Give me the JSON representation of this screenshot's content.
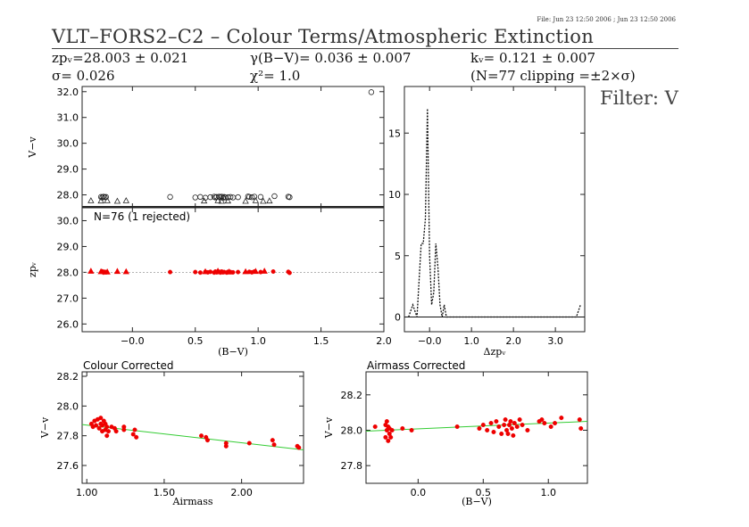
{
  "file_stamp": "File: Jun 23 12:50 2006 ; Jun 23 12:50 2006",
  "header": {
    "title": "VLT–FORS2–C2 – Colour Terms/Atmospheric Extinction",
    "zp_line": "zpᵥ=28.003 ± 0.021",
    "sigma_line": "σ= 0.026",
    "gamma_line": "γ(B−V)= 0.036 ± 0.007",
    "chi2_line": "χ²= 1.0",
    "k_line": "kᵥ= 0.121 ± 0.007",
    "clip_line": "(N=77 clipping =±2×σ)",
    "filter_label": "Filter: V"
  },
  "chart_data": [
    {
      "id": "top",
      "type": "scatter",
      "ylabel": "V−v",
      "xlim": [
        -0.4,
        2.0
      ],
      "ylim": [
        27.5,
        32.2
      ],
      "yticks": [
        28.0,
        29.0,
        30.0,
        31.0,
        32.0
      ],
      "series": [
        {
          "marker": "circle",
          "points": [
            [
              -0.25,
              27.92
            ],
            [
              -0.24,
              27.9
            ],
            [
              -0.23,
              27.93
            ],
            [
              -0.22,
              27.91
            ],
            [
              -0.21,
              27.92
            ],
            [
              0.3,
              27.92
            ],
            [
              0.5,
              27.9
            ],
            [
              0.54,
              27.92
            ],
            [
              0.58,
              27.89
            ],
            [
              0.62,
              27.91
            ],
            [
              0.65,
              27.93
            ],
            [
              0.66,
              27.9
            ],
            [
              0.67,
              27.92
            ],
            [
              0.69,
              27.93
            ],
            [
              0.7,
              27.91
            ],
            [
              0.71,
              27.93
            ],
            [
              0.72,
              27.89
            ],
            [
              0.73,
              27.92
            ],
            [
              0.74,
              27.9
            ],
            [
              0.76,
              27.91
            ],
            [
              0.78,
              27.92
            ],
            [
              0.8,
              27.9
            ],
            [
              0.84,
              27.91
            ],
            [
              0.92,
              27.94
            ],
            [
              0.93,
              27.92
            ],
            [
              0.95,
              27.91
            ],
            [
              0.97,
              27.93
            ],
            [
              1.02,
              27.92
            ],
            [
              1.13,
              27.95
            ],
            [
              1.24,
              27.93
            ],
            [
              1.25,
              27.91
            ],
            [
              1.9,
              31.98
            ]
          ]
        },
        {
          "marker": "triangle",
          "points": [
            [
              -0.33,
              27.78
            ],
            [
              -0.25,
              27.77
            ],
            [
              -0.2,
              27.78
            ],
            [
              -0.12,
              27.76
            ],
            [
              -0.05,
              27.78
            ],
            [
              0.57,
              27.77
            ],
            [
              0.68,
              27.78
            ],
            [
              0.71,
              27.76
            ],
            [
              0.76,
              27.77
            ],
            [
              0.9,
              27.76
            ],
            [
              0.98,
              27.78
            ],
            [
              1.04,
              27.76
            ],
            [
              1.09,
              27.77
            ]
          ]
        }
      ]
    },
    {
      "id": "mid",
      "type": "scatter",
      "annotation": "N=76 (1 rejected)",
      "ylabel": "zpᵥ",
      "xlabel": "(B−V)",
      "xlim": [
        -0.4,
        2.0
      ],
      "ylim": [
        25.7,
        30.5
      ],
      "xticks": [
        -0.0,
        0.5,
        1.0,
        1.5,
        2.0
      ],
      "xtick_labels": [
        "−0.0",
        "0.5",
        "1.0",
        "1.5",
        "2.0"
      ],
      "yticks": [
        26.0,
        27.0,
        28.0,
        29.0,
        30.0
      ],
      "reference_line": 28.0,
      "series": [
        {
          "color": "#ee0000",
          "marker": "dot",
          "points": [
            [
              -0.24,
              28.04
            ],
            [
              -0.23,
              27.99
            ],
            [
              -0.22,
              28.02
            ],
            [
              -0.21,
              28.0
            ],
            [
              0.3,
              28.01
            ],
            [
              0.5,
              28.01
            ],
            [
              0.54,
              27.99
            ],
            [
              0.58,
              28.02
            ],
            [
              0.6,
              28.0
            ],
            [
              0.62,
              28.02
            ],
            [
              0.65,
              27.99
            ],
            [
              0.66,
              28.03
            ],
            [
              0.67,
              28.0
            ],
            [
              0.68,
              28.01
            ],
            [
              0.69,
              28.02
            ],
            [
              0.7,
              27.99
            ],
            [
              0.71,
              28.03
            ],
            [
              0.72,
              28.0
            ],
            [
              0.73,
              28.01
            ],
            [
              0.75,
              27.99
            ],
            [
              0.76,
              28.02
            ],
            [
              0.78,
              28.01
            ],
            [
              0.8,
              28.0
            ],
            [
              0.84,
              28.01
            ],
            [
              0.93,
              28.02
            ],
            [
              0.95,
              28.0
            ],
            [
              0.97,
              28.03
            ],
            [
              1.02,
              28.01
            ],
            [
              1.12,
              28.03
            ],
            [
              1.24,
              28.02
            ],
            [
              1.25,
              27.98
            ]
          ]
        },
        {
          "color": "#ee0000",
          "marker": "triangle",
          "points": [
            [
              -0.33,
              28.05
            ],
            [
              -0.25,
              28.03
            ],
            [
              -0.2,
              28.02
            ],
            [
              -0.12,
              28.04
            ],
            [
              -0.05,
              28.03
            ],
            [
              0.58,
              28.03
            ],
            [
              0.68,
              28.05
            ],
            [
              0.77,
              28.02
            ],
            [
              0.9,
              28.03
            ],
            [
              0.98,
              28.04
            ],
            [
              1.05,
              28.05
            ]
          ]
        }
      ]
    },
    {
      "id": "hist",
      "type": "line",
      "xlabel": "Δzpᵥ",
      "xlim": [
        -0.6,
        3.7
      ],
      "ylim": [
        -1.2,
        18.8
      ],
      "xticks": [
        0.0,
        1.0,
        2.0,
        3.0
      ],
      "xtick_labels": [
        "−0.0",
        "1.0",
        "2.0",
        "3.0"
      ],
      "yticks": [
        0,
        5,
        10,
        15
      ],
      "series": [
        {
          "style": "dashed",
          "x": [
            -0.5,
            -0.4,
            -0.3,
            -0.2,
            -0.15,
            -0.1,
            -0.05,
            0.0,
            0.05,
            0.1,
            0.15,
            0.2,
            0.25,
            0.3,
            0.35,
            0.4,
            3.5,
            3.6
          ],
          "y": [
            0,
            1,
            0,
            6,
            6,
            8,
            17,
            5,
            1,
            2,
            6,
            4,
            1,
            0,
            1,
            0,
            0,
            1
          ]
        }
      ]
    },
    {
      "id": "colour",
      "type": "scatter",
      "title": "Colour Corrected",
      "xlabel": "Airmass",
      "ylabel": "V−v",
      "xlim": [
        0.97,
        2.4
      ],
      "ylim": [
        27.48,
        28.23
      ],
      "xticks": [
        1.0,
        1.5,
        2.0
      ],
      "xtick_labels": [
        "1.00",
        "1.50",
        "2.00"
      ],
      "yticks": [
        27.6,
        27.8,
        28.0,
        28.2
      ],
      "fit_line": [
        [
          0.97,
          27.875
        ],
        [
          2.4,
          27.705
        ]
      ],
      "series": [
        {
          "color": "#ee0000",
          "marker": "dot",
          "points": [
            [
              1.03,
              27.88
            ],
            [
              1.04,
              27.86
            ],
            [
              1.05,
              27.9
            ],
            [
              1.06,
              27.87
            ],
            [
              1.07,
              27.91
            ],
            [
              1.08,
              27.85
            ],
            [
              1.09,
              27.88
            ],
            [
              1.09,
              27.92
            ],
            [
              1.1,
              27.83
            ],
            [
              1.1,
              27.87
            ],
            [
              1.11,
              27.9
            ],
            [
              1.12,
              27.84
            ],
            [
              1.12,
              27.88
            ],
            [
              1.13,
              27.86
            ],
            [
              1.13,
              27.8
            ],
            [
              1.14,
              27.83
            ],
            [
              1.16,
              27.86
            ],
            [
              1.18,
              27.85
            ],
            [
              1.19,
              27.83
            ],
            [
              1.24,
              27.84
            ],
            [
              1.24,
              27.86
            ],
            [
              1.3,
              27.81
            ],
            [
              1.31,
              27.84
            ],
            [
              1.32,
              27.79
            ],
            [
              1.74,
              27.8
            ],
            [
              1.77,
              27.79
            ],
            [
              1.78,
              27.77
            ],
            [
              1.9,
              27.75
            ],
            [
              1.9,
              27.73
            ],
            [
              2.05,
              27.75
            ],
            [
              2.2,
              27.77
            ],
            [
              2.21,
              27.74
            ],
            [
              2.36,
              27.73
            ],
            [
              2.37,
              27.72
            ]
          ]
        }
      ]
    },
    {
      "id": "airmass",
      "type": "scatter",
      "title": "Airmass Corrected",
      "xlabel": "(B−V)",
      "ylabel": "V−v",
      "xlim": [
        -0.4,
        1.3
      ],
      "ylim": [
        27.7,
        28.33
      ],
      "xticks": [
        0.0,
        0.5,
        1.0
      ],
      "xtick_labels": [
        "0.0",
        "0.5",
        "1.0"
      ],
      "yticks": [
        27.8,
        28.0,
        28.2
      ],
      "fit_line": [
        [
          -0.4,
          27.995
        ],
        [
          1.3,
          28.05
        ]
      ],
      "series": [
        {
          "color": "#ee0000",
          "marker": "dot",
          "points": [
            [
              -0.33,
              28.02
            ],
            [
              -0.25,
              28.03
            ],
            [
              -0.25,
              27.96
            ],
            [
              -0.24,
              28.05
            ],
            [
              -0.24,
              28.0
            ],
            [
              -0.23,
              27.94
            ],
            [
              -0.23,
              28.02
            ],
            [
              -0.22,
              27.98
            ],
            [
              -0.22,
              28.01
            ],
            [
              -0.21,
              27.96
            ],
            [
              -0.2,
              28.0
            ],
            [
              -0.12,
              28.01
            ],
            [
              -0.05,
              28.0
            ],
            [
              0.3,
              28.02
            ],
            [
              0.47,
              28.01
            ],
            [
              0.5,
              28.03
            ],
            [
              0.53,
              28.0
            ],
            [
              0.56,
              28.04
            ],
            [
              0.58,
              27.99
            ],
            [
              0.6,
              28.05
            ],
            [
              0.62,
              28.02
            ],
            [
              0.64,
              27.98
            ],
            [
              0.66,
              28.03
            ],
            [
              0.67,
              28.06
            ],
            [
              0.68,
              28.0
            ],
            [
              0.69,
              27.98
            ],
            [
              0.7,
              28.03
            ],
            [
              0.71,
              28.05
            ],
            [
              0.72,
              28.01
            ],
            [
              0.73,
              27.97
            ],
            [
              0.74,
              28.04
            ],
            [
              0.76,
              28.02
            ],
            [
              0.78,
              28.06
            ],
            [
              0.8,
              28.03
            ],
            [
              0.84,
              28.0
            ],
            [
              0.93,
              28.05
            ],
            [
              0.95,
              28.06
            ],
            [
              0.97,
              28.04
            ],
            [
              1.02,
              28.02
            ],
            [
              1.05,
              28.04
            ],
            [
              1.1,
              28.07
            ],
            [
              1.24,
              28.06
            ],
            [
              1.25,
              28.01
            ]
          ]
        }
      ]
    }
  ]
}
